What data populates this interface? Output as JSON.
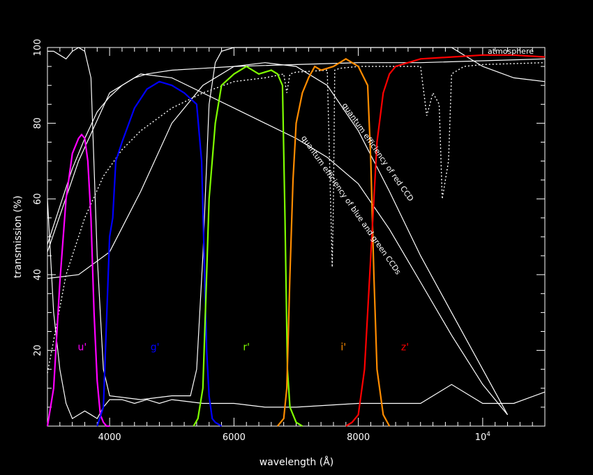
{
  "chart_data": {
    "type": "line",
    "xlabel": "wavelength (Å)",
    "ylabel": "transmission (%)",
    "xlim": [
      3000,
      11000
    ],
    "ylim": [
      0,
      100
    ],
    "xticks": [
      {
        "value": 4000,
        "label": "4000"
      },
      {
        "value": 6000,
        "label": "6000"
      },
      {
        "value": 8000,
        "label": "8000"
      },
      {
        "value": 10000,
        "label": "10",
        "sup": "4"
      }
    ],
    "yticks": [
      {
        "value": 20,
        "label": "20"
      },
      {
        "value": 40,
        "label": "40"
      },
      {
        "value": 60,
        "label": "60"
      },
      {
        "value": 80,
        "label": "80"
      },
      {
        "value": 100,
        "label": "100"
      }
    ],
    "grid": false,
    "filters": [
      {
        "name": "u'",
        "color": "#ff00ff",
        "label_x": 3560,
        "label_y": 20,
        "x": [
          3000,
          3100,
          3200,
          3300,
          3400,
          3500,
          3550,
          3600,
          3650,
          3700,
          3750,
          3800,
          3850,
          3900,
          3950,
          4000
        ],
        "y": [
          0,
          10,
          38,
          60,
          72,
          76,
          77,
          76,
          70,
          55,
          30,
          12,
          3,
          1,
          0,
          0
        ]
      },
      {
        "name": "g'",
        "color": "#0000ff",
        "label_x": 4730,
        "label_y": 20,
        "x": [
          3800,
          3900,
          4000,
          4050,
          4100,
          4200,
          4400,
          4600,
          4800,
          5000,
          5200,
          5400,
          5480,
          5520,
          5560,
          5600,
          5650,
          5700,
          5800
        ],
        "y": [
          0,
          5,
          50,
          55,
          70,
          75,
          84,
          89,
          91,
          90,
          88,
          85,
          70,
          45,
          20,
          8,
          2,
          1,
          0
        ]
      },
      {
        "name": "r'",
        "color": "#7fff00",
        "label_x": 6200,
        "label_y": 20,
        "x": [
          5350,
          5420,
          5500,
          5550,
          5600,
          5700,
          5800,
          6000,
          6200,
          6400,
          6600,
          6700,
          6780,
          6820,
          6860,
          6900,
          7000,
          7100
        ],
        "y": [
          0,
          2,
          10,
          35,
          60,
          80,
          90,
          93,
          95,
          93,
          94,
          93,
          90,
          55,
          15,
          5,
          1,
          0
        ]
      },
      {
        "name": "i'",
        "color": "#ff8c00",
        "label_x": 7760,
        "label_y": 20,
        "x": [
          6700,
          6800,
          6850,
          6900,
          6950,
          7000,
          7100,
          7200,
          7300,
          7400,
          7600,
          7800,
          8000,
          8150,
          8200,
          8250,
          8300,
          8400,
          8500
        ],
        "y": [
          0,
          2,
          10,
          40,
          65,
          80,
          88,
          92,
          95,
          94,
          95,
          97,
          95,
          90,
          70,
          40,
          15,
          3,
          0
        ]
      },
      {
        "name": "z'",
        "color": "#ff0000",
        "label_x": 8750,
        "label_y": 20,
        "x": [
          7800,
          7900,
          8000,
          8100,
          8200,
          8300,
          8400,
          8500,
          8600,
          8800,
          9000,
          9500,
          10000,
          10500,
          11000
        ],
        "y": [
          0,
          1,
          3,
          15,
          45,
          75,
          88,
          93,
          95,
          96,
          97,
          97.5,
          98,
          98,
          97.5
        ]
      }
    ],
    "white_curves": [
      {
        "name": "atmosphere",
        "style": "solid",
        "x": [
          3000,
          3200,
          3400,
          3600,
          3800,
          4000,
          4200,
          4400,
          4600,
          4800,
          5000,
          5500,
          6000,
          7000,
          8000,
          9000,
          10000,
          11000
        ],
        "y": [
          48,
          58,
          68,
          76,
          83,
          87,
          90,
          92,
          93,
          93.5,
          94,
          94.5,
          95,
          95.5,
          96,
          96,
          96.5,
          97
        ]
      },
      {
        "name": "quantum efficiency of red CCD",
        "style": "solid",
        "x": [
          3000,
          3500,
          4000,
          4500,
          5000,
          5500,
          6000,
          6500,
          7000,
          7500,
          8000,
          8500,
          9000,
          9500,
          10000,
          10400
        ],
        "y": [
          39,
          40,
          46,
          62,
          80,
          90,
          95,
          96,
          95,
          90,
          78,
          62,
          45,
          30,
          15,
          3
        ]
      },
      {
        "name": "quantum efficiency of blue and green CCDs",
        "style": "solid",
        "x": [
          3000,
          3500,
          4000,
          4500,
          5000,
          5500,
          6000,
          6500,
          7000,
          7500,
          8000,
          8500,
          9000,
          9500,
          10000,
          10400
        ],
        "y": [
          46,
          70,
          88,
          93,
          92,
          88,
          84,
          80,
          76,
          71,
          64,
          52,
          38,
          24,
          11,
          3
        ]
      },
      {
        "name": "atmospheric transmission (dotted)",
        "style": "dotted",
        "x": [
          3000,
          3300,
          3600,
          3900,
          4200,
          4500,
          5000,
          5500,
          6000,
          6500,
          6800,
          6850,
          6900,
          7000,
          7500,
          7580,
          7600,
          7620,
          7700,
          8000,
          8500,
          9000,
          9100,
          9200,
          9300,
          9350,
          9400,
          9450,
          9500,
          9700,
          10000,
          11000
        ],
        "y": [
          14,
          40,
          55,
          66,
          73,
          78,
          84,
          88,
          91,
          92,
          93,
          88,
          93,
          93.5,
          94,
          42,
          60,
          94,
          94.5,
          95,
          95,
          95,
          82,
          88,
          85,
          60,
          65,
          70,
          93,
          95,
          95.5,
          96
        ]
      },
      {
        "name": "u' red leak (solid thin)",
        "style": "solid",
        "x": [
          3000,
          3100,
          3200,
          3300,
          3400,
          3500,
          3600,
          3700,
          3800,
          3900,
          4000,
          4200,
          4400,
          4600,
          4800,
          5000,
          5500,
          6000,
          6500,
          7000,
          8000,
          9000,
          9500,
          10000,
          10500,
          11000
        ],
        "y": [
          60,
          30,
          15,
          6,
          2,
          3,
          4,
          3,
          2,
          5,
          7,
          7,
          6,
          7,
          6,
          7,
          6,
          6,
          5,
          5,
          6,
          6,
          11,
          6,
          6,
          9
        ]
      },
      {
        "name": "filter envelope (solid thin)",
        "style": "solid",
        "x": [
          3000,
          3100,
          3200,
          3300,
          3400,
          3500,
          3600,
          3700,
          3800,
          3900,
          4000,
          4500,
          5000,
          5300,
          5400,
          5500,
          5600,
          5700,
          5800,
          6000,
          7000,
          8000,
          9000,
          9500,
          10000,
          10500,
          11000
        ],
        "y": [
          99,
          99,
          98,
          97,
          99,
          100,
          99,
          92,
          45,
          15,
          8,
          7,
          8,
          8,
          15,
          45,
          85,
          96,
          99,
          100,
          100,
          100,
          100,
          100,
          95,
          92,
          91
        ]
      }
    ],
    "annotations": [
      {
        "text": "atmosphere",
        "x": 10450,
        "y": 98.3,
        "angle": 0
      },
      {
        "text": "quantum efficiency of red CCD",
        "x": 8280,
        "y": 72,
        "angle": 55
      },
      {
        "text": "quantum efficiency of blue and green CCDs",
        "x": 7850,
        "y": 58,
        "angle": 55
      }
    ]
  }
}
